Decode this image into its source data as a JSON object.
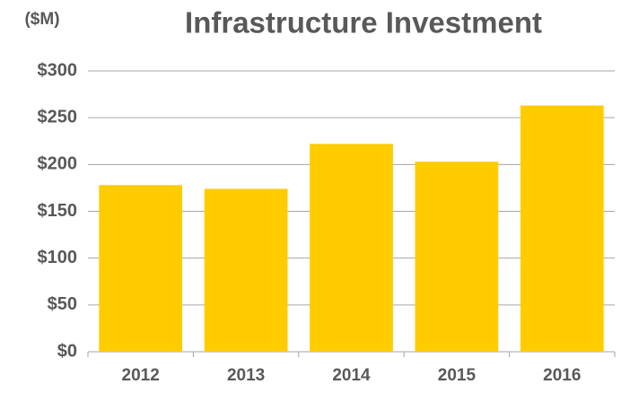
{
  "chart_data": {
    "type": "bar",
    "title": "Infrastructure Investment",
    "y_label": "($M)",
    "categories": [
      "2012",
      "2013",
      "2014",
      "2015",
      "2016"
    ],
    "values": [
      178,
      174,
      222,
      203,
      263
    ],
    "color": "#ffcc00",
    "ylim": [
      0,
      300
    ],
    "yticks": [
      {
        "value": 0,
        "label": "$0"
      },
      {
        "value": 50,
        "label": "$50"
      },
      {
        "value": 100,
        "label": "$100"
      },
      {
        "value": 150,
        "label": "$150"
      },
      {
        "value": 200,
        "label": "$200"
      },
      {
        "value": 250,
        "label": "$250"
      },
      {
        "value": 300,
        "label": "$300"
      }
    ],
    "grid": true
  }
}
